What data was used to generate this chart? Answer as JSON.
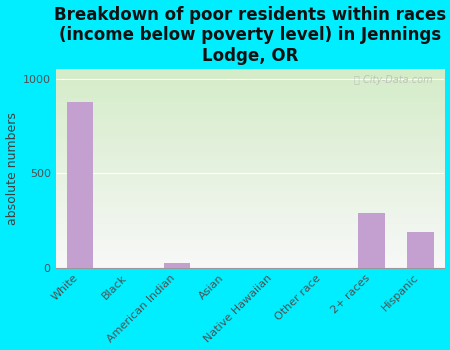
{
  "title": "Breakdown of poor residents within races\n(income below poverty level) in Jennings\nLodge, OR",
  "categories": [
    "White",
    "Black",
    "American Indian",
    "Asian",
    "Native Hawaiian",
    "Other race",
    "2+ races",
    "Hispanic"
  ],
  "values": [
    880,
    0,
    28,
    0,
    0,
    0,
    290,
    190
  ],
  "bar_color": "#c4a0d0",
  "ylabel": "absolute numbers",
  "ylim": [
    0,
    1050
  ],
  "yticks": [
    0,
    500,
    1000
  ],
  "background_outer": "#00eeff",
  "background_inner_top": "#d4ecc8",
  "background_inner_bottom": "#f8f8f8",
  "title_fontsize": 12,
  "ylabel_fontsize": 9,
  "tick_fontsize": 8,
  "watermark": "City-Data.com"
}
